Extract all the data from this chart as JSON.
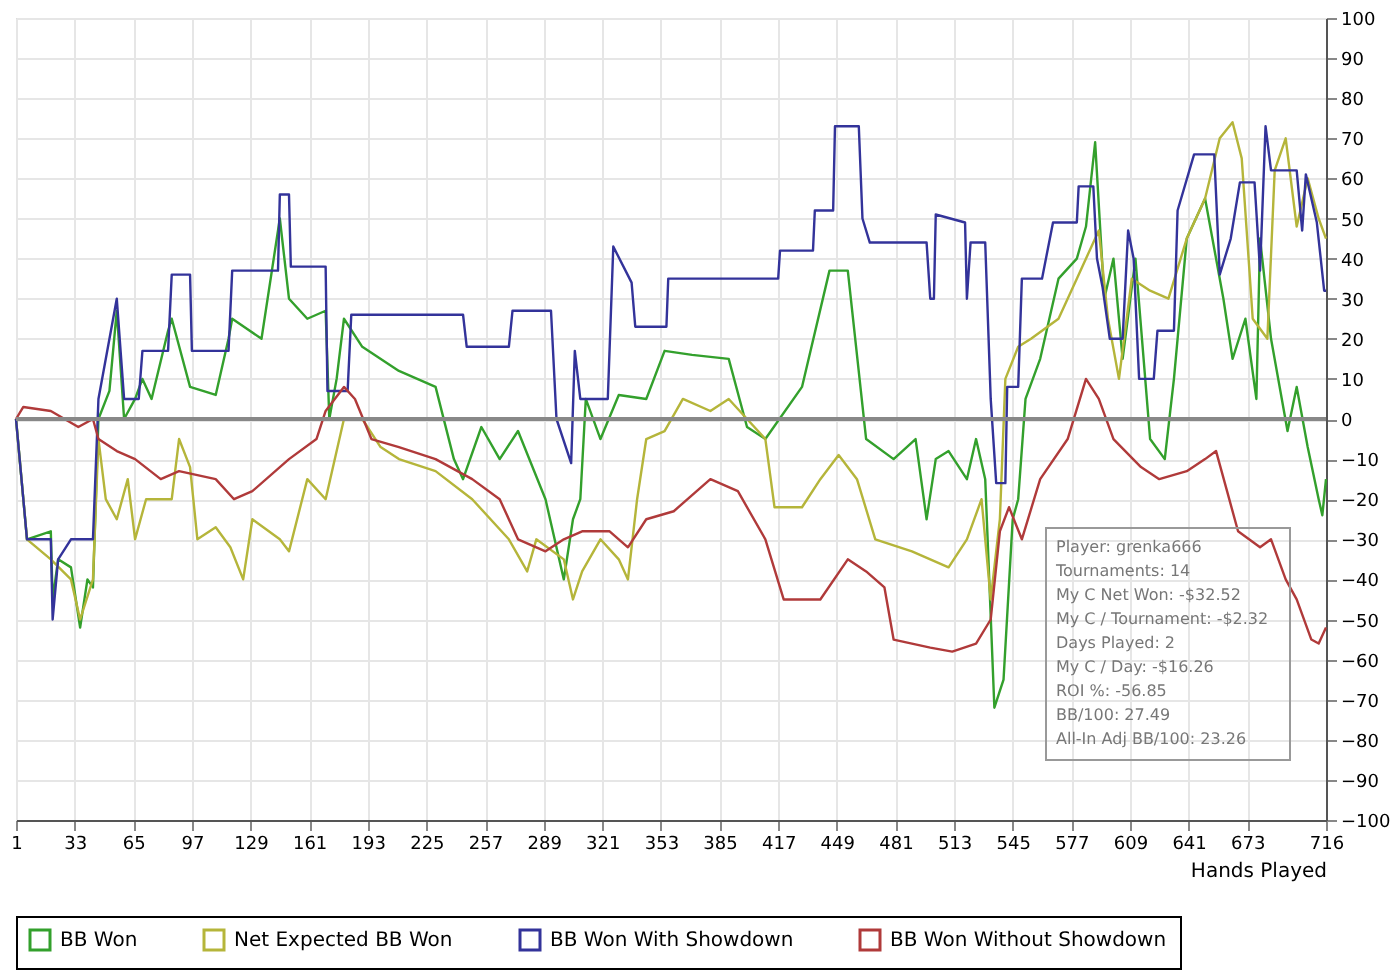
{
  "chart_data": {
    "type": "line",
    "xlabel": "Hands Played",
    "xlim": [
      1,
      716
    ],
    "xticks": [
      1,
      33,
      65,
      97,
      129,
      161,
      193,
      225,
      257,
      289,
      321,
      353,
      385,
      417,
      449,
      481,
      513,
      545,
      577,
      609,
      641,
      673,
      716
    ],
    "ylim": [
      -100,
      100
    ],
    "yticks": [
      -100,
      -90,
      -80,
      -70,
      -60,
      -50,
      -40,
      -30,
      -20,
      -10,
      0,
      10,
      20,
      30,
      40,
      50,
      60,
      70,
      80,
      90,
      100
    ],
    "grid": true,
    "legend": "bottom",
    "ref_lines": [
      {
        "axis": "y",
        "value": 0,
        "color": "#888888"
      }
    ],
    "annotations": [
      "Player: grenka666",
      "Tournaments: 14",
      "My C Net Won: -$32.52",
      "My C / Tournament: -$2.32",
      "Days Played: 2",
      "My C / Day: -$16.26",
      "ROI %: -56.85",
      "BB/100: 27.49",
      "All-In Adj BB/100: 23.26"
    ],
    "series": [
      {
        "name": "BB Won",
        "color": "#33a02c",
        "x": [
          1,
          7,
          20,
          21,
          24,
          31,
          36,
          40,
          43,
          46,
          52,
          56,
          60,
          66,
          70,
          75,
          84,
          86,
          96,
          110,
          117,
          119,
          135,
          145,
          150,
          160,
          170,
          172,
          176,
          180,
          190,
          210,
          230,
          240,
          245,
          255,
          265,
          275,
          290,
          300,
          305,
          309,
          312,
          320,
          330,
          345,
          355,
          370,
          390,
          400,
          410,
          430,
          445,
          455,
          465,
          480,
          492,
          498,
          503,
          510,
          520,
          525,
          530,
          535,
          540,
          545,
          548,
          552,
          560,
          570,
          580,
          585,
          590,
          595,
          600,
          605,
          612,
          620,
          628,
          633,
          640,
          650,
          660,
          665,
          672,
          678,
          680,
          686,
          695,
          700,
          706,
          712,
          714,
          716
        ],
        "values": [
          0,
          -30,
          -28,
          -45,
          -35,
          -37,
          -52,
          -40,
          -42,
          0,
          7,
          27,
          0,
          5,
          10,
          5,
          22,
          25,
          8,
          6,
          20,
          25,
          20,
          50,
          30,
          25,
          27,
          0,
          10,
          25,
          18,
          12,
          8,
          -10,
          -15,
          -2,
          -10,
          -3,
          -20,
          -40,
          -25,
          -20,
          5,
          -5,
          6,
          5,
          17,
          16,
          15,
          -2,
          -5,
          8,
          37,
          37,
          -5,
          -10,
          -5,
          -25,
          -10,
          -8,
          -15,
          -5,
          -15,
          -72,
          -65,
          -25,
          -20,
          5,
          15,
          35,
          40,
          48,
          69,
          30,
          40,
          15,
          40,
          -5,
          -10,
          10,
          45,
          55,
          30,
          15,
          25,
          5,
          45,
          20,
          -3,
          8,
          -7,
          -20,
          -24,
          -15
        ]
      },
      {
        "name": "Net Expected BB Won",
        "color": "#b5b53a",
        "x": [
          1,
          7,
          20,
          31,
          36,
          43,
          46,
          50,
          56,
          62,
          66,
          72,
          86,
          90,
          96,
          100,
          110,
          118,
          125,
          130,
          145,
          150,
          160,
          170,
          180,
          190,
          200,
          210,
          230,
          250,
          270,
          280,
          285,
          300,
          305,
          310,
          320,
          330,
          335,
          340,
          345,
          355,
          365,
          380,
          390,
          410,
          415,
          430,
          440,
          450,
          460,
          470,
          490,
          510,
          520,
          528,
          533,
          538,
          541,
          548,
          555,
          570,
          580,
          592,
          597,
          603,
          610,
          620,
          630,
          640,
          650,
          658,
          665,
          670,
          676,
          684,
          688,
          694,
          700,
          706,
          712,
          716
        ],
        "values": [
          0,
          -30,
          -35,
          -40,
          -50,
          -40,
          -5,
          -20,
          -25,
          -15,
          -30,
          -20,
          -20,
          -5,
          -12,
          -30,
          -27,
          -32,
          -40,
          -25,
          -30,
          -33,
          -15,
          -20,
          0,
          0,
          -7,
          -10,
          -13,
          -20,
          -30,
          -38,
          -30,
          -35,
          -45,
          -38,
          -30,
          -35,
          -40,
          -20,
          -5,
          -3,
          5,
          2,
          5,
          -5,
          -22,
          -22,
          -15,
          -9,
          -15,
          -30,
          -33,
          -37,
          -30,
          -20,
          -45,
          -25,
          10,
          18,
          20,
          25,
          35,
          47,
          25,
          10,
          35,
          32,
          30,
          45,
          55,
          70,
          74,
          65,
          25,
          20,
          62,
          70,
          48,
          60,
          50,
          45
        ]
      },
      {
        "name": "BB Won With Showdown",
        "color": "#33339a",
        "x": [
          1,
          7,
          20,
          21,
          24,
          31,
          43,
          46,
          56,
          60,
          68,
          70,
          84,
          86,
          96,
          97,
          117,
          119,
          144,
          145,
          150,
          151,
          170,
          171,
          182,
          184,
          245,
          247,
          270,
          272,
          293,
          296,
          304,
          306,
          309,
          324,
          327,
          337,
          339,
          356,
          357,
          417,
          418,
          436,
          437,
          447,
          448,
          461,
          463,
          467,
          498,
          500,
          502,
          503,
          519,
          520,
          522,
          530,
          533,
          536,
          541,
          542,
          548,
          550,
          561,
          567,
          580,
          581,
          589,
          591,
          594,
          598,
          605,
          608,
          611,
          614,
          622,
          624,
          633,
          635,
          644,
          655,
          658,
          664,
          669,
          677,
          680,
          683,
          686,
          700,
          703,
          705,
          711,
          715,
          716
        ],
        "values": [
          0,
          -30,
          -30,
          -50,
          -35,
          -30,
          -30,
          5,
          30,
          5,
          5,
          17,
          17,
          36,
          36,
          17,
          17,
          37,
          37,
          56,
          56,
          38,
          38,
          7,
          7,
          26,
          26,
          18,
          18,
          27,
          27,
          0,
          -11,
          17,
          5,
          5,
          43,
          34,
          23,
          23,
          35,
          35,
          42,
          42,
          52,
          52,
          73,
          73,
          50,
          44,
          44,
          30,
          30,
          51,
          49,
          30,
          44,
          44,
          5,
          -16,
          -16,
          8,
          8,
          35,
          35,
          49,
          49,
          58,
          58,
          40,
          33,
          20,
          20,
          47,
          40,
          10,
          10,
          22,
          22,
          52,
          66,
          66,
          36,
          45,
          59,
          59,
          37,
          73,
          62,
          62,
          47,
          61,
          49,
          32,
          32
        ]
      },
      {
        "name": "BB Won Without Showdown",
        "color": "#b03a3a",
        "x": [
          1,
          5,
          20,
          35,
          43,
          46,
          56,
          66,
          80,
          90,
          110,
          120,
          130,
          150,
          165,
          170,
          180,
          186,
          195,
          210,
          230,
          250,
          265,
          275,
          290,
          300,
          310,
          325,
          335,
          345,
          360,
          380,
          395,
          410,
          420,
          440,
          455,
          465,
          475,
          480,
          500,
          512,
          525,
          533,
          538,
          543,
          550,
          560,
          575,
          585,
          592,
          600,
          615,
          625,
          640,
          650,
          656,
          662,
          668,
          680,
          686,
          694,
          700,
          708,
          712,
          716
        ],
        "values": [
          0,
          3,
          2,
          -2,
          0,
          -5,
          -8,
          -10,
          -15,
          -13,
          -15,
          -20,
          -18,
          -10,
          -5,
          2,
          8,
          5,
          -5,
          -7,
          -10,
          -15,
          -20,
          -30,
          -33,
          -30,
          -28,
          -28,
          -32,
          -25,
          -23,
          -15,
          -18,
          -30,
          -45,
          -45,
          -35,
          -38,
          -42,
          -55,
          -57,
          -58,
          -56,
          -50,
          -28,
          -22,
          -30,
          -15,
          -5,
          10,
          5,
          -5,
          -12,
          -15,
          -13,
          -10,
          -8,
          -18,
          -28,
          -32,
          -30,
          -40,
          -45,
          -55,
          -56,
          -52
        ]
      }
    ]
  }
}
